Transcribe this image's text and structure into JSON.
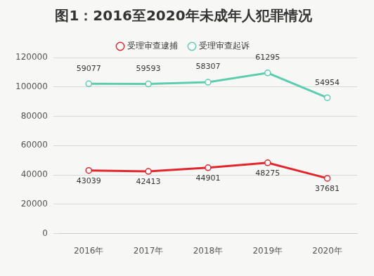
{
  "chart_data": {
    "type": "line",
    "title": "图1：2016至2020年未成年人犯罪情况",
    "categories": [
      "2016年",
      "2017年",
      "2018年",
      "2019年",
      "2020年"
    ],
    "series": [
      {
        "name": "受理审查逮捕",
        "color": "#e3262b",
        "values": [
          43039,
          42413,
          44901,
          48275,
          37681
        ]
      },
      {
        "name": "受理审查起诉",
        "color": "#5ccdae",
        "values": [
          59077,
          59593,
          58307,
          61295,
          54954
        ]
      }
    ],
    "ylim": [
      0,
      120000
    ],
    "yticks": [
      0,
      20000,
      40000,
      60000,
      80000,
      100000,
      120000
    ],
    "grid": true,
    "stacked": true,
    "data_labels": true,
    "legend": "top",
    "marker": "circle"
  }
}
